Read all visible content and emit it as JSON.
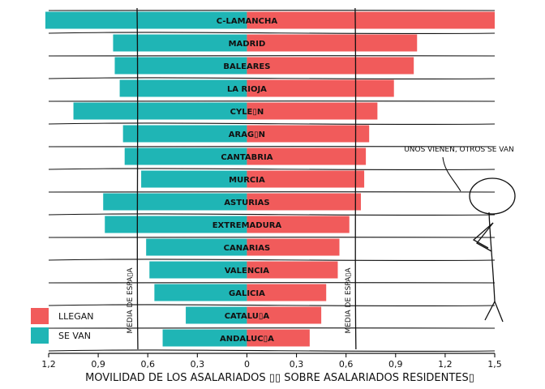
{
  "chart_data": {
    "type": "bar",
    "categories": [
      "C-LAMANCHA",
      "MADRID",
      "BALEARES",
      "LA RIOJA",
      "CYLE▯N",
      "ARAG▯N",
      "CANTABRIA",
      "MURCIA",
      "ASTURIAS",
      "EXTREMADURA",
      "CANARIAS",
      "VALENCIA",
      "GALICIA",
      "CATALU▯A",
      "ANDALUC▯A"
    ],
    "series": [
      {
        "name": "LLEGAN",
        "color": "#f15b5b",
        "values": [
          1.5,
          1.03,
          1.01,
          0.89,
          0.79,
          0.74,
          0.72,
          0.71,
          0.69,
          0.62,
          0.56,
          0.55,
          0.48,
          0.45,
          0.38
        ]
      },
      {
        "name": "SE VAN",
        "color": "#1fb5b5",
        "values": [
          1.22,
          0.81,
          0.8,
          0.77,
          1.05,
          0.75,
          0.74,
          0.64,
          0.87,
          0.86,
          0.61,
          0.59,
          0.56,
          0.37,
          0.51
        ]
      }
    ],
    "xlim": [
      -1.2,
      1.5
    ],
    "xticks": [
      "1,2",
      "0,9",
      "0,6",
      "0,3",
      "0",
      "0,3",
      "0,6",
      "0,9",
      "1,2",
      "1,5"
    ],
    "xlabel": "MOVILIDAD DE LOS ASALARIADOS ▯▯ SOBRE ASALARIADOS RESIDENTES▯",
    "reference_lines": [
      {
        "label": "MEDIA DE ESPA▯A",
        "value": -0.66
      },
      {
        "label": "MEDIA DE ESPA▯A",
        "value": 0.66
      }
    ],
    "legend": {
      "position": "bottom-left"
    },
    "annotation": "UNOS VIENEN, OTROS SE VAN"
  }
}
